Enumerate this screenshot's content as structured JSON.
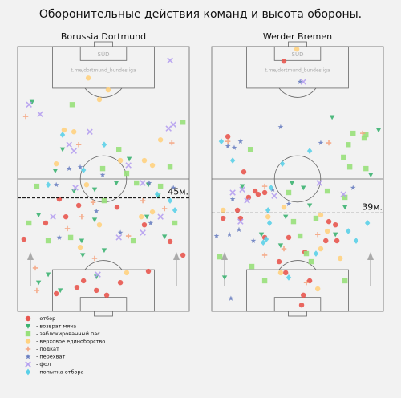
{
  "chart_data": {
    "type": "scatter",
    "title": "Оборонительные действия команд и высота обороны.",
    "legend": [
      {
        "name": "- отбор",
        "color": "#e8574f",
        "marker": "circle"
      },
      {
        "name": "- возврат мяча",
        "color": "#3cb371",
        "marker": "triangle-down"
      },
      {
        "name": "- заблокированный пас",
        "color": "#98e07a",
        "marker": "square"
      },
      {
        "name": "- верховое единоборство",
        "color": "#ffd27f",
        "marker": "circle"
      },
      {
        "name": "- подкат",
        "color": "#f4a582",
        "marker": "plus"
      },
      {
        "name": "- перехват",
        "color": "#6a7fc1",
        "marker": "star"
      },
      {
        "name": "- фол",
        "color": "#b59ff0",
        "marker": "x"
      },
      {
        "name": "- попытка отбора",
        "color": "#5bd0e8",
        "marker": "diamond"
      }
    ],
    "panels": [
      {
        "title": "Borussia Dortmund",
        "watermark": [
          "SÜD",
          "t.me/dortmund_bundesliga"
        ],
        "xlim": [
          0,
          68
        ],
        "ylim": [
          0,
          105
        ],
        "defense_line": {
          "value": 45,
          "label": "45м."
        },
        "series": [
          {
            "x": [
              19.1,
              24.2,
              11.1,
              39.4,
              50.2,
              51.8,
              40.7,
              26.1,
              23.5,
              31.2,
              15.3,
              35.3,
              2.5,
              60.4,
              65.5,
              16.5
            ],
            "values": [
              37.5,
              42.0,
              35.0,
              41.3,
              34.3,
              15.9,
              11.4,
              12.1,
              9.5,
              8.3,
              7.0,
              6.4,
              28.6,
              27.7,
              22.3,
              44.5
            ]
          },
          {
            "x": [
              5.7,
              14.9,
              22.3,
              30.5,
              39.1,
              44.2,
              55.7,
              51.2,
              30.5,
              25.4,
              12.1,
              8.3,
              16.9,
              25.8,
              34.3,
              58.2,
              17.8,
              8.3,
              51.8,
              31.2
            ],
            "values": [
              83.0,
              55.7,
              47.7,
              48.3,
              50.9,
              60.4,
              45.8,
              37.5,
              36.3,
              28.0,
              14.6,
              11.4,
              8.3,
              22.3,
              24.2,
              29.6,
              64.2,
              38.2,
              50.2,
              13.7
            ]
          },
          {
            "x": [
              21.6,
              40.1,
              33.7,
              47.1,
              56.6,
              7.6,
              4.5,
              34.3,
              21.0,
              45.8,
              62.3,
              43.2,
              12.1,
              60.4,
              65.5
            ],
            "values": [
              82.0,
              64.2,
              56.6,
              50.9,
              49.6,
              49.6,
              35.0,
              43.9,
              29.3,
              28.0,
              35.0,
              54.7,
              28.0,
              57.2,
              75.0
            ]
          },
          {
            "x": [
              28.0,
              35.9,
              32.4,
              18.4,
              22.3,
              50.2,
              40.7,
              53.4,
              15.3,
              56.6,
              27.3,
              32.4,
              53.4,
              49.0,
              24.8,
              43.2
            ],
            "values": [
              92.5,
              87.8,
              84.0,
              71.9,
              71.2,
              59.8,
              59.8,
              57.9,
              58.5,
              68.0,
              50.2,
              34.3,
              39.4,
              37.5,
              25.4,
              15.3
            ]
          },
          {
            "x": [
              3.2,
              24.2,
              25.4,
              29.9,
              49.6,
              43.9,
              7.0,
              7.6,
              30.5,
              61.1,
              58.2,
              19.7
            ],
            "values": [
              77.3,
              66.1,
              37.5,
              43.2,
              43.9,
              29.9,
              17.2,
              8.3,
              21.0,
              66.8,
              40.7,
              32.8
            ]
          },
          {
            "x": [
              15.3,
              20.4,
              24.8,
              33.7,
              61.7,
              16.5,
              31.2,
              40.7,
              52.7,
              52.1
            ],
            "values": [
              50.2,
              56.6,
              57.2,
              54.1,
              49.0,
              29.3,
              39.7,
              31.2,
              35.0,
              50.9
            ]
          },
          {
            "x": [
              60.4,
              4.5,
              8.9,
              28.6,
              20.4,
              22.3,
              43.9,
              59.8,
              61.7,
              22.9,
              14.0,
              49.6,
              40.1,
              56.6,
              31.8,
              49.6
            ],
            "values": [
              99.5,
              82.0,
              78.2,
              71.2,
              66.1,
              63.6,
              57.9,
              72.5,
              74.1,
              49.0,
              37.5,
              31.2,
              29.3,
              37.5,
              14.6,
              50.9
            ]
          },
          {
            "x": [
              17.8,
              34.3,
              26.1,
              60.4,
              62.3,
              12.1,
              55.3
            ],
            "values": [
              70.0,
              66.1,
              56.0,
              43.9,
              40.1,
              50.2,
              46.4
            ]
          }
        ]
      },
      {
        "title": "Werder Bremen",
        "watermark": [
          "SÜD",
          "t.me/dortmund_bundesliga"
        ],
        "xlim": [
          0,
          68
        ],
        "ylim": [
          0,
          105
        ],
        "defense_line": {
          "value": 39,
          "label": "39м."
        },
        "series": [
          {
            "x": [
              28.6,
              6.4,
              12.7,
              17.2,
              14.6,
              18.4,
              21.0,
              10.2,
              11.4,
              21.0,
              30.5,
              46.4,
              49.0,
              45.2,
              36.9,
              26.7,
              29.3,
              38.8,
              36.3,
              35.6,
              4.5,
              49.6
            ],
            "values": [
              99.2,
              69.3,
              55.3,
              47.7,
              45.2,
              46.4,
              47.1,
              40.1,
              36.9,
              29.3,
              29.3,
              35.6,
              34.3,
              28.0,
              23.5,
              19.7,
              15.3,
              12.1,
              6.4,
              2.5,
              36.9,
              28.0
            ]
          },
          {
            "x": [
              47.7,
              66.1,
              31.8,
              36.3,
              12.1,
              19.7,
              38.8,
              52.8,
              27.3,
              49.0,
              29.3,
              63.0,
              5.1
            ],
            "values": [
              77.0,
              71.9,
              50.9,
              49.0,
              49.6,
              30.5,
              42.0,
              41.3,
              26.1,
              30.5,
              37.5,
              54.1,
              13.4
            ]
          },
          {
            "x": [
              56.0,
              54.1,
              60.4,
              61.1,
              15.3,
              52.2,
              54.7,
              45.8,
              52.8,
              30.5,
              32.4,
              41.3,
              35.0,
              39.4,
              15.9,
              52.8,
              21.0,
              37.5,
              3.2,
              61.1
            ],
            "values": [
              70.6,
              66.1,
              68.7,
              56.6,
              64.2,
              61.1,
              57.2,
              47.7,
              45.2,
              47.1,
              35.6,
              36.9,
              29.9,
              19.7,
              17.8,
              12.1,
              12.1,
              22.9,
              21.6,
              70.0
            ]
          },
          {
            "x": [
              33.7,
              4.5,
              22.3,
              28.6,
              43.2,
              45.8,
              50.9,
              42.0,
              27.3,
              43.2
            ],
            "values": [
              104.0,
              40.1,
              37.5,
              41.3,
              38.2,
              31.8,
              21.0,
              8.9,
              15.3,
              24.8
            ]
          },
          {
            "x": [
              6.4,
              46.4,
              59.8,
              21.0,
              28.6,
              21.0,
              37.5,
              42.0
            ],
            "values": [
              67.4,
              66.8,
              70.6,
              49.6,
              24.8,
              22.3,
              11.4,
              30.5
            ]
          },
          {
            "x": [
              27.3,
              6.4,
              8.9,
              11.4,
              43.2,
              24.2,
              8.3,
              1.9,
              7.0,
              10.8,
              30.5,
              35.0,
              7.6,
              56.0,
              16.5
            ],
            "values": [
              73.1,
              65.5,
              64.9,
              67.4,
              66.8,
              48.3,
              44.5,
              29.9,
              30.5,
              32.4,
              42.6,
              91.0,
              5.1,
              49.0,
              28.0
            ]
          },
          {
            "x": [
              36.3,
              24.8,
              12.1,
              11.4,
              14.0,
              52.2,
              42.6,
              8.3
            ],
            "values": [
              91.0,
              45.8,
              48.3,
              35.6,
              43.9,
              46.4,
              50.9,
              47.1
            ]
          },
          {
            "x": [
              3.8,
              8.3,
              28.0,
              38.8,
              23.5,
              22.9,
              21.6,
              54.1,
              61.7,
              57.2,
              20.4,
              30.5,
              41.3,
              22.3
            ],
            "values": [
              67.4,
              59.8,
              58.5,
              63.6,
              49.0,
              35.0,
              28.6,
              31.8,
              35.0,
              28.0,
              27.3,
              13.4,
              22.9,
              40.1
            ]
          }
        ]
      }
    ]
  }
}
